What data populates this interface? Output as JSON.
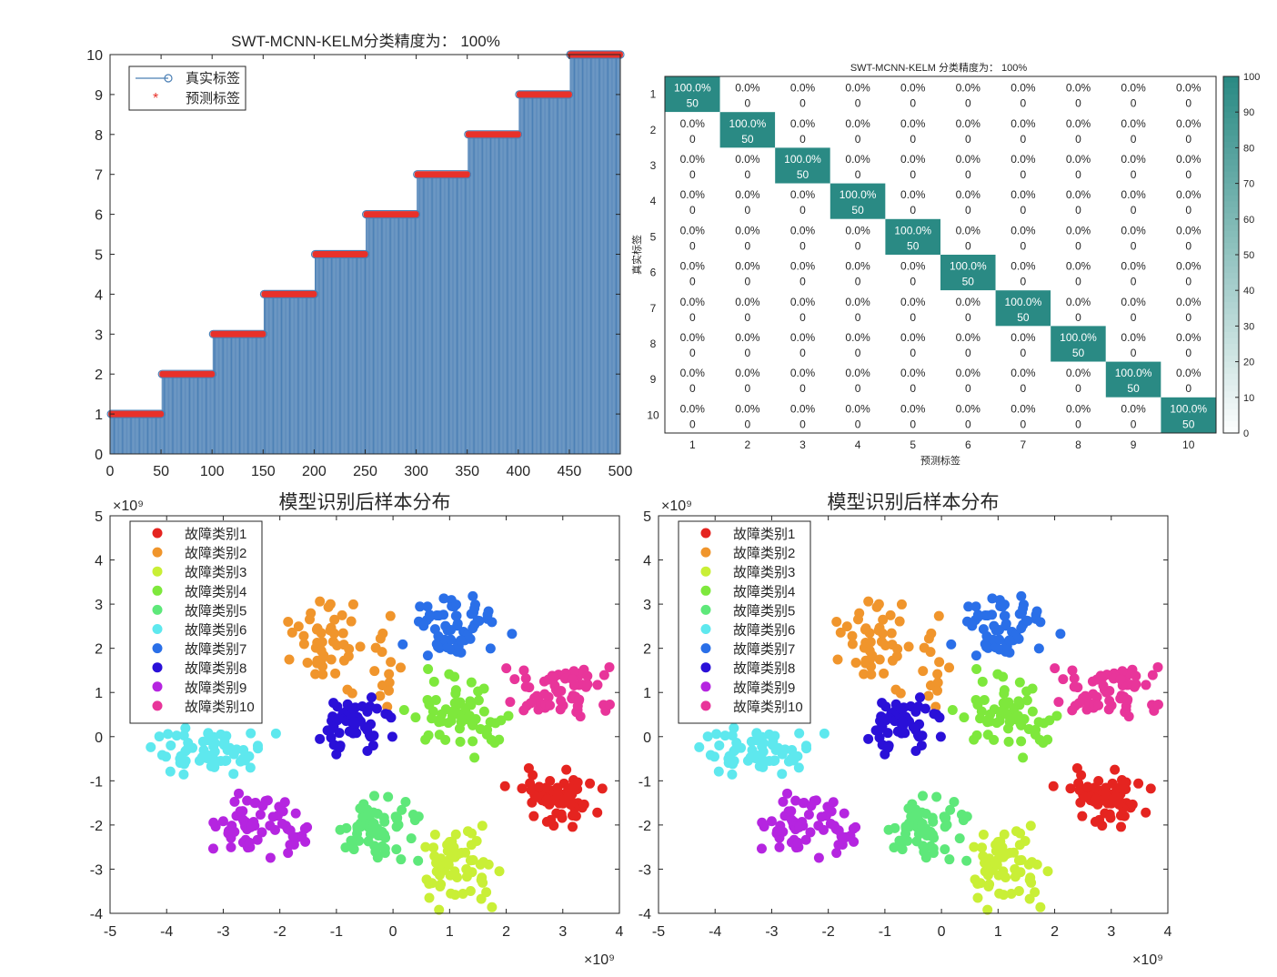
{
  "chart_data": [
    {
      "type": "line",
      "title": "SWT-MCNN-KELM分类精度为： 100%",
      "xlim": [
        0,
        500
      ],
      "ylim": [
        0,
        10
      ],
      "xticks": [
        "0",
        "50",
        "100",
        "150",
        "200",
        "250",
        "300",
        "350",
        "400",
        "450",
        "500"
      ],
      "yticks": [
        "0",
        "1",
        "2",
        "3",
        "4",
        "5",
        "6",
        "7",
        "8",
        "9",
        "10"
      ],
      "legend_position": "top-left",
      "series": [
        {
          "name": "真实标签",
          "marker": "o-stem",
          "color": "#4a7fb5",
          "segments": [
            {
              "x_from": 1,
              "x_to": 50,
              "y": 1
            },
            {
              "x_from": 51,
              "x_to": 100,
              "y": 2
            },
            {
              "x_from": 101,
              "x_to": 150,
              "y": 3
            },
            {
              "x_from": 151,
              "x_to": 200,
              "y": 4
            },
            {
              "x_from": 201,
              "x_to": 250,
              "y": 5
            },
            {
              "x_from": 251,
              "x_to": 300,
              "y": 6
            },
            {
              "x_from": 301,
              "x_to": 350,
              "y": 7
            },
            {
              "x_from": 351,
              "x_to": 400,
              "y": 8
            },
            {
              "x_from": 401,
              "x_to": 450,
              "y": 9
            },
            {
              "x_from": 451,
              "x_to": 500,
              "y": 10
            }
          ]
        },
        {
          "name": "预测标签",
          "marker": "*",
          "color": "#e8312a",
          "segments": [
            {
              "x_from": 1,
              "x_to": 50,
              "y": 1
            },
            {
              "x_from": 51,
              "x_to": 100,
              "y": 2
            },
            {
              "x_from": 101,
              "x_to": 150,
              "y": 3
            },
            {
              "x_from": 151,
              "x_to": 200,
              "y": 4
            },
            {
              "x_from": 201,
              "x_to": 250,
              "y": 5
            },
            {
              "x_from": 251,
              "x_to": 300,
              "y": 6
            },
            {
              "x_from": 301,
              "x_to": 350,
              "y": 7
            },
            {
              "x_from": 351,
              "x_to": 400,
              "y": 8
            },
            {
              "x_from": 401,
              "x_to": 450,
              "y": 9
            },
            {
              "x_from": 451,
              "x_to": 500,
              "y": 10
            }
          ]
        }
      ]
    },
    {
      "type": "heatmap",
      "title": "SWT-MCNN-KELM 分类精度为：  100%",
      "xlabel": "预测标签",
      "ylabel": "真实标签",
      "row_labels": [
        "1",
        "2",
        "3",
        "4",
        "5",
        "6",
        "7",
        "8",
        "9",
        "10"
      ],
      "col_labels": [
        "1",
        "2",
        "3",
        "4",
        "5",
        "6",
        "7",
        "8",
        "9",
        "10"
      ],
      "diagonal": {
        "percent": "100.0%",
        "count": "50"
      },
      "off_diagonal": {
        "percent": "0.0%",
        "count": "0"
      },
      "colorbar": {
        "ticks": [
          "0",
          "10",
          "20",
          "30",
          "40",
          "50",
          "60",
          "70",
          "80",
          "90",
          "100"
        ],
        "range": [
          0,
          100
        ],
        "color_high": "#2a8a84",
        "color_low": "#ffffff"
      }
    },
    {
      "type": "scatter",
      "title": "模型识别后样本分布",
      "xlim": [
        -5,
        4
      ],
      "ylim": [
        -4,
        5
      ],
      "xticks": [
        "-5",
        "-4",
        "-3",
        "-2",
        "-1",
        "0",
        "1",
        "2",
        "3",
        "4"
      ],
      "yticks": [
        "-4",
        "-3",
        "-2",
        "-1",
        "0",
        "1",
        "2",
        "3",
        "4",
        "5"
      ],
      "x_exponent": "×10⁹",
      "y_exponent": "×10⁹",
      "legend_position": "top-left",
      "series": [
        {
          "name": "故障类别1",
          "color": "#e52420",
          "clusters": [
            {
              "cx": 2.9,
              "cy": -1.4,
              "sx": 0.35,
              "sy": 0.3,
              "n": 60
            }
          ]
        },
        {
          "name": "故障类别2",
          "color": "#f0952c",
          "clusters": [
            {
              "cx": -1.2,
              "cy": 2.2,
              "sx": 0.3,
              "sy": 0.45,
              "n": 45
            },
            {
              "cx": -0.2,
              "cy": 1.5,
              "sx": 0.2,
              "sy": 0.5,
              "n": 15
            }
          ]
        },
        {
          "name": "故障类别3",
          "color": "#c9ef36",
          "clusters": [
            {
              "cx": 1.2,
              "cy": -3.0,
              "sx": 0.35,
              "sy": 0.4,
              "n": 60
            }
          ]
        },
        {
          "name": "故障类别4",
          "color": "#7ee83c",
          "clusters": [
            {
              "cx": 1.2,
              "cy": 0.5,
              "sx": 0.4,
              "sy": 0.4,
              "n": 60
            }
          ]
        },
        {
          "name": "故障类别5",
          "color": "#5ee87a",
          "clusters": [
            {
              "cx": -0.3,
              "cy": -2.1,
              "sx": 0.35,
              "sy": 0.35,
              "n": 60
            }
          ]
        },
        {
          "name": "故障类别6",
          "color": "#5ee8ee",
          "clusters": [
            {
              "cx": -3.3,
              "cy": -0.4,
              "sx": 0.5,
              "sy": 0.3,
              "n": 60
            }
          ]
        },
        {
          "name": "故障类别7",
          "color": "#2a6fe8",
          "clusters": [
            {
              "cx": 1.1,
              "cy": 2.5,
              "sx": 0.4,
              "sy": 0.35,
              "n": 60
            }
          ]
        },
        {
          "name": "故障类别8",
          "color": "#2a10d8",
          "clusters": [
            {
              "cx": -0.7,
              "cy": 0.3,
              "sx": 0.3,
              "sy": 0.3,
              "n": 60
            }
          ]
        },
        {
          "name": "故障类别9",
          "color": "#b525e0",
          "clusters": [
            {
              "cx": -2.3,
              "cy": -2.0,
              "sx": 0.35,
              "sy": 0.4,
              "n": 60
            }
          ]
        },
        {
          "name": "故障类别10",
          "color": "#e8359a",
          "clusters": [
            {
              "cx": 3.0,
              "cy": 1.0,
              "sx": 0.5,
              "sy": 0.35,
              "n": 60
            }
          ]
        }
      ]
    }
  ]
}
